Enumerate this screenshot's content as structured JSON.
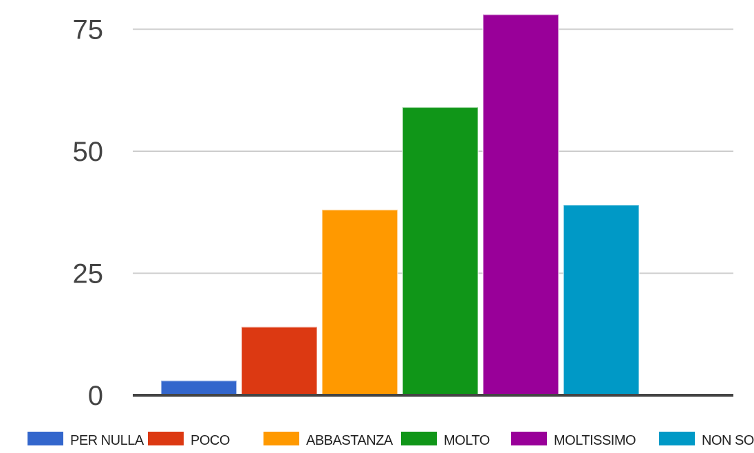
{
  "chart_data": {
    "type": "bar",
    "title": "",
    "xlabel": "",
    "ylabel": "",
    "ylim": [
      0,
      80
    ],
    "yticks": [
      0,
      25,
      50,
      75
    ],
    "grid": true,
    "legend_position": "bottom",
    "categories": [
      "PER NULLA",
      "POCO",
      "ABBASTANZA",
      "MOLTO",
      "MOLTISSIMO",
      "NON SO"
    ],
    "values": [
      3,
      14,
      38,
      59,
      78,
      39
    ],
    "colors": [
      "#3366cc",
      "#dc3912",
      "#ff9900",
      "#109618",
      "#990099",
      "#0099c6"
    ]
  }
}
